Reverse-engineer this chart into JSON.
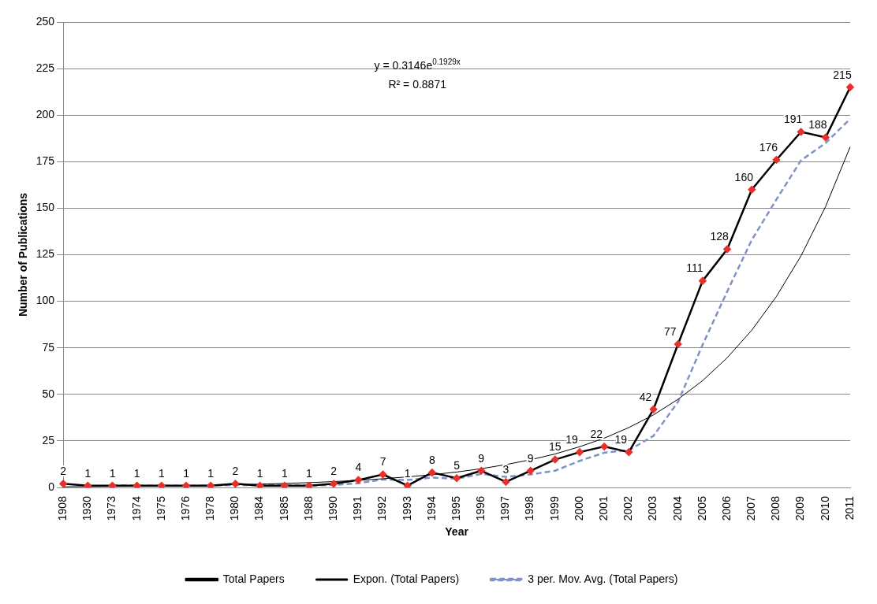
{
  "chart_data": {
    "type": "line",
    "xlabel": "Year",
    "ylabel": "Number of Publications",
    "categories": [
      "1908",
      "1930",
      "1973",
      "1974",
      "1975",
      "1976",
      "1978",
      "1980",
      "1984",
      "1985",
      "1988",
      "1990",
      "1991",
      "1992",
      "1993",
      "1994",
      "1995",
      "1996",
      "1997",
      "1998",
      "1999",
      "2000",
      "2001",
      "2002",
      "2003",
      "2004",
      "2005",
      "2006",
      "2007",
      "2008",
      "2009",
      "2010",
      "2011"
    ],
    "series": [
      {
        "name": "Total Papers",
        "color": "#000000",
        "marker": "diamond",
        "line_style": "solid",
        "data_labels": true,
        "values": [
          2,
          1,
          1,
          1,
          1,
          1,
          1,
          2,
          1,
          1,
          1,
          2,
          4,
          7,
          1,
          8,
          5,
          9,
          3,
          9,
          15,
          19,
          22,
          19,
          42,
          77,
          111,
          128,
          160,
          176,
          191,
          188,
          215
        ]
      },
      {
        "name": "Expon. (Total Papers)",
        "color": "#000000",
        "marker": "none",
        "line_style": "solid",
        "values": [
          0.4,
          0.5,
          0.6,
          0.7,
          0.8,
          1.0,
          1.2,
          1.5,
          1.8,
          2.2,
          2.6,
          3.2,
          3.8,
          4.7,
          5.7,
          6.9,
          8.3,
          10.1,
          12.3,
          14.9,
          18.0,
          21.9,
          26.5,
          32.2,
          39.0,
          47.4,
          57.4,
          69.7,
          84.5,
          102.6,
          124.4,
          150.9,
          183
        ]
      },
      {
        "name": "3 per. Mov. Avg. (Total Papers)",
        "color": "#7f93c6",
        "marker": "none",
        "line_style": "dashed",
        "values": [
          null,
          null,
          1.3,
          1,
          1,
          1,
          1,
          1.3,
          1.3,
          1.3,
          1,
          1.3,
          2.3,
          4.3,
          4,
          5.3,
          4.7,
          7.3,
          5.7,
          7,
          9,
          14.3,
          18.7,
          20,
          27.7,
          46,
          76.7,
          105.3,
          133,
          154.7,
          175.7,
          185,
          198
        ]
      }
    ],
    "ylim": [
      0,
      250
    ],
    "yticks": [
      0,
      25,
      50,
      75,
      100,
      125,
      150,
      175,
      200,
      225,
      250
    ],
    "grid": "y",
    "legend": "bottom",
    "annotations": [
      "y = 0.3146e$^{0.1929x}$",
      "R² = 0.8871"
    ]
  }
}
